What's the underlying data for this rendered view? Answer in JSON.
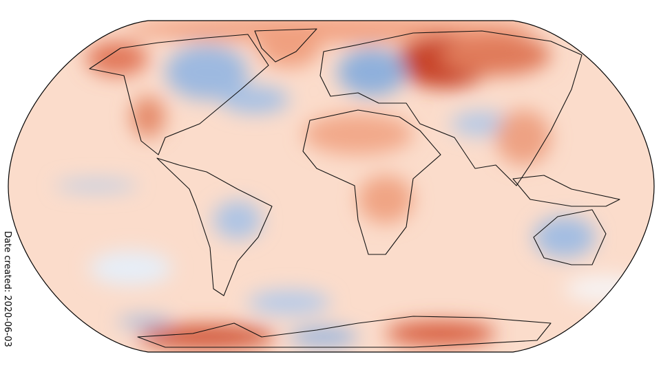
{
  "caption": "Date created: 2020-06-03"
}
